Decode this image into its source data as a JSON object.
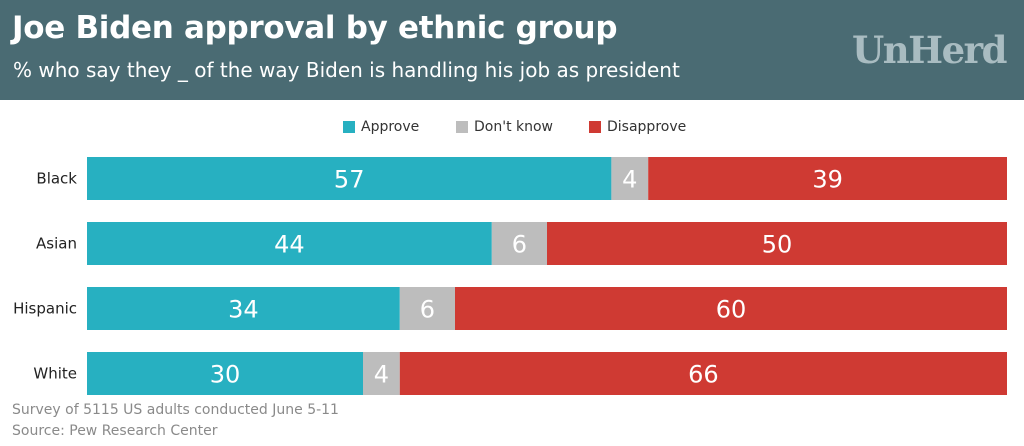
{
  "header": {
    "title": "Joe Biden approval by ethnic group",
    "subtitle": "% who say they _ of the way Biden is handling his job as president",
    "brand": "UnHerd"
  },
  "legend": [
    {
      "label": "Approve",
      "color": "#27b0c1"
    },
    {
      "label": "Don't know",
      "color": "#bdbdbd"
    },
    {
      "label": "Disapprove",
      "color": "#cf3a33"
    }
  ],
  "chart_data": {
    "type": "bar",
    "orientation": "horizontal",
    "stacked": true,
    "categories": [
      "Black",
      "Asian",
      "Hispanic",
      "White"
    ],
    "series": [
      {
        "name": "Approve",
        "color": "#27b0c1",
        "values": [
          57,
          44,
          34,
          30
        ]
      },
      {
        "name": "Don't know",
        "color": "#bdbdbd",
        "values": [
          4,
          6,
          6,
          4
        ]
      },
      {
        "name": "Disapprove",
        "color": "#cf3a33",
        "values": [
          39,
          50,
          60,
          66
        ]
      }
    ],
    "xlim": [
      0,
      100
    ],
    "title": "Joe Biden approval by ethnic group",
    "legend_position": "top-center"
  },
  "footer": {
    "note": "Survey of 5115 US adults conducted June 5-11",
    "source": "Source: Pew Research Center"
  }
}
